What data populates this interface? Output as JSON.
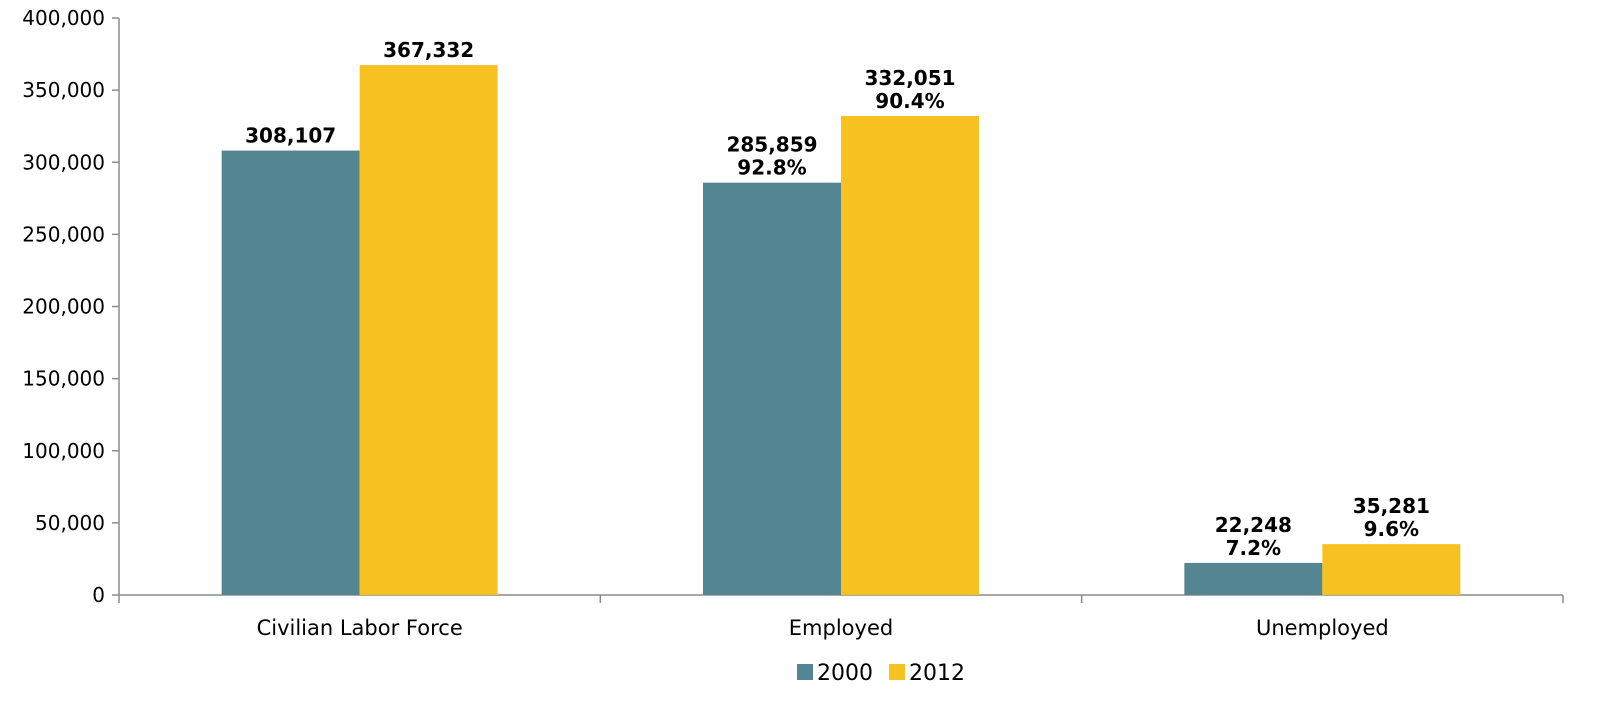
{
  "chart_data": {
    "type": "bar",
    "categories": [
      "Civilian Labor Force",
      "Employed",
      "Unemployed"
    ],
    "series": [
      {
        "name": "2000",
        "color": "#538592",
        "values": [
          308107,
          285859,
          22248
        ],
        "labels": [
          [
            "308,107"
          ],
          [
            "285,859",
            "92.8%"
          ],
          [
            "22,248",
            "7.2%"
          ]
        ]
      },
      {
        "name": "2012",
        "color": "#f7c122",
        "values": [
          367332,
          332051,
          35281
        ],
        "labels": [
          [
            "367,332"
          ],
          [
            "332,051",
            "90.4%"
          ],
          [
            "35,281",
            "9.6%"
          ]
        ]
      }
    ],
    "ylim": [
      0,
      400000
    ],
    "yticks": [
      0,
      50000,
      100000,
      150000,
      200000,
      250000,
      300000,
      350000,
      400000
    ],
    "ytick_labels": [
      "0",
      "50,000",
      "100,000",
      "150,000",
      "200,000",
      "250,000",
      "300,000",
      "350,000",
      "400,000"
    ],
    "title": "",
    "xlabel": "",
    "ylabel": "",
    "grid": false,
    "legend_position": "bottom-center"
  }
}
